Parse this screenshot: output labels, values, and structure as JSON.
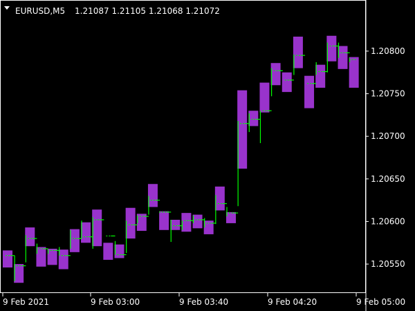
{
  "header": {
    "symbol_timeframe": "EURUSD,M5",
    "ohlc": "1.21087 1.21105 1.21068 1.21072"
  },
  "colors": {
    "background": "#000000",
    "axis": "#ffffff",
    "indicator_box": "#9933cc",
    "price_line": "#00ff00"
  },
  "chart_data": {
    "type": "candlestick",
    "title": "EURUSD,M5",
    "y_ticks": [
      "1.20800",
      "1.20750",
      "1.20700",
      "1.20650",
      "1.20600",
      "1.20550"
    ],
    "y_tick_values": [
      1.208,
      1.2075,
      1.207,
      1.2065,
      1.206,
      1.2055
    ],
    "x_ticks": [
      "9 Feb 2021",
      "9 Feb 03:00",
      "9 Feb 03:40",
      "9 Feb 04:20",
      "9 Feb 05:00"
    ],
    "ylim": [
      1.20516,
      1.2086
    ],
    "grid": false,
    "boxes": [
      [
        1.20566,
        1.20546
      ],
      [
        1.2055,
        1.20528
      ],
      [
        1.20593,
        1.20571
      ],
      [
        1.2057,
        1.20547
      ],
      [
        1.20568,
        1.20549
      ],
      [
        1.20567,
        1.20544
      ],
      [
        1.20591,
        1.20564
      ],
      [
        1.20599,
        1.20575
      ],
      [
        1.20614,
        1.20571
      ],
      [
        1.20575,
        1.20555
      ],
      [
        1.20573,
        1.20557
      ],
      [
        1.20616,
        1.2058
      ],
      [
        1.20609,
        1.20589
      ],
      [
        1.20644,
        1.20617
      ],
      [
        1.20612,
        1.2059
      ],
      [
        1.20602,
        1.2059
      ],
      [
        1.2061,
        1.20588
      ],
      [
        1.20608,
        1.20592
      ],
      [
        1.20601,
        1.20585
      ],
      [
        1.20641,
        1.20613
      ],
      [
        1.20611,
        1.20598
      ],
      [
        1.20754,
        1.20662
      ],
      [
        1.2073,
        1.20712
      ],
      [
        1.20763,
        1.20728
      ],
      [
        1.20786,
        1.2076
      ],
      [
        1.20775,
        1.20752
      ],
      [
        1.20817,
        1.2078
      ],
      [
        1.20771,
        1.20733
      ],
      [
        1.20784,
        1.20757
      ],
      [
        1.20818,
        1.20788
      ],
      [
        1.20806,
        1.20779
      ],
      [
        1.20793,
        1.20757
      ]
    ],
    "price_line": [
      [
        1.2056,
        1.2056,
        1.2056
      ],
      [
        1.2053,
        1.2056,
        1.20548
      ],
      [
        1.20552,
        1.20584,
        1.2058
      ],
      [
        1.20562,
        1.20574,
        1.20568
      ],
      [
        1.20562,
        1.20567,
        1.20566
      ],
      [
        1.2056,
        1.2057,
        1.2056
      ],
      [
        1.20568,
        1.2059,
        1.2058
      ],
      [
        1.2058,
        1.20601,
        1.20582
      ],
      [
        1.20568,
        1.20605,
        1.20602
      ],
      [
        1.20583,
        1.20583,
        1.20583
      ],
      [
        1.20561,
        1.20577,
        1.20561
      ],
      [
        1.20563,
        1.20601,
        1.20596
      ],
      [
        1.20598,
        1.20607,
        1.20606
      ],
      [
        1.20608,
        1.2063,
        1.20625
      ],
      [
        1.2061,
        1.20612,
        1.20611
      ],
      [
        1.20576,
        1.20602,
        1.20595
      ],
      [
        1.2059,
        1.20601,
        1.20601
      ],
      [
        1.20598,
        1.20607,
        1.20602
      ],
      [
        1.20593,
        1.20604,
        1.20598
      ],
      [
        1.20597,
        1.20631,
        1.20621
      ],
      [
        1.20606,
        1.20617,
        1.2061
      ],
      [
        1.20618,
        1.20718,
        1.20715
      ],
      [
        1.20705,
        1.20727,
        1.2072
      ],
      [
        1.20692,
        1.2073,
        1.2073
      ],
      [
        1.20747,
        1.2078,
        1.20777
      ],
      [
        1.20766,
        1.20766,
        1.20766
      ],
      [
        1.20772,
        1.20796,
        1.20795
      ],
      [
        1.20762,
        1.20762,
        1.20762
      ],
      [
        1.20772,
        1.20787,
        1.20776
      ],
      [
        1.20775,
        1.2081,
        1.20806
      ],
      [
        1.20792,
        1.2081,
        1.20798
      ],
      [
        1.20787,
        1.20792,
        1.2079
      ]
    ]
  }
}
